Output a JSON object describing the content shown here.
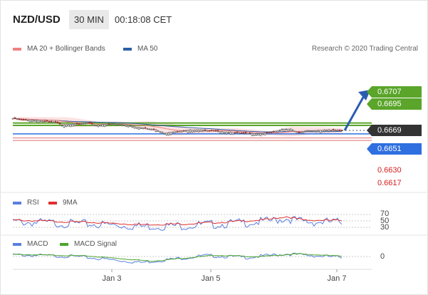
{
  "header": {
    "pair": "NZD/USD",
    "timeframe": "30 MIN",
    "time": "00:18:08 CET"
  },
  "legend_main": [
    {
      "label": "MA 20 + Bollinger Bands",
      "color": "#f08080"
    },
    {
      "label": "MA 50",
      "color": "#2e5fa8"
    }
  ],
  "credit": "Research © 2020 Trading Central",
  "price_labels": [
    {
      "text": "0.6707",
      "bg": "#5aa52a",
      "style": "box"
    },
    {
      "text": "0.6695",
      "bg": "#5aa52a",
      "style": "box"
    },
    {
      "text": "0.6669",
      "bg": "#333333",
      "style": "box"
    },
    {
      "text": "0.6651",
      "bg": "#2f6fe0",
      "style": "box"
    },
    {
      "text": "0.6630",
      "color": "#d22020",
      "style": "text"
    },
    {
      "text": "0.6617",
      "color": "#d22020",
      "style": "text"
    }
  ],
  "rsi": {
    "legend": [
      {
        "label": "RSI",
        "color": "#5b7fe0"
      },
      {
        "label": "9MA",
        "color": "#e03030"
      }
    ],
    "levels": [
      "70",
      "50",
      "30"
    ]
  },
  "macd": {
    "legend": [
      {
        "label": "MACD",
        "color": "#5b7fe0"
      },
      {
        "label": "MACD Signal",
        "color": "#4aa52a"
      }
    ],
    "levels": [
      "0"
    ]
  },
  "xaxis": [
    "Jan 3",
    "Jan 5",
    "Jan 7"
  ],
  "chart_data": {
    "type": "candlestick",
    "symbol": "NZD/USD",
    "interval": "30 MIN",
    "levels": {
      "resistance": [
        0.6707,
        0.6695
      ],
      "last": 0.6669,
      "pivot": 0.6651,
      "support": [
        0.663,
        0.6617
      ]
    },
    "close_path": [
      [
        0,
        0.6731
      ],
      [
        4,
        0.6726
      ],
      [
        8,
        0.6722
      ],
      [
        12,
        0.672
      ],
      [
        16,
        0.6716
      ],
      [
        20,
        0.6712
      ],
      [
        23,
        0.6697
      ],
      [
        27,
        0.6701
      ],
      [
        31,
        0.6702
      ],
      [
        35,
        0.6708
      ],
      [
        39,
        0.6695
      ],
      [
        43,
        0.6701
      ],
      [
        47,
        0.6703
      ],
      [
        51,
        0.6699
      ],
      [
        55,
        0.6693
      ],
      [
        59,
        0.6684
      ],
      [
        63,
        0.6678
      ],
      [
        67,
        0.6672
      ],
      [
        71,
        0.6655
      ],
      [
        75,
        0.666
      ],
      [
        79,
        0.6666
      ],
      [
        83,
        0.6672
      ],
      [
        87,
        0.6671
      ],
      [
        91,
        0.6668
      ],
      [
        95,
        0.6666
      ],
      [
        99,
        0.6661
      ],
      [
        103,
        0.6658
      ],
      [
        107,
        0.6656
      ],
      [
        111,
        0.6654
      ],
      [
        115,
        0.6651
      ],
      [
        118,
        0.6655
      ],
      [
        122,
        0.6662
      ],
      [
        126,
        0.6675
      ],
      [
        130,
        0.6676
      ],
      [
        134,
        0.6655
      ],
      [
        138,
        0.6669
      ],
      [
        142,
        0.6668
      ],
      [
        146,
        0.6671
      ],
      [
        150,
        0.6672
      ],
      [
        154,
        0.6669
      ]
    ],
    "rsi_path": [
      [
        0,
        54
      ],
      [
        20,
        50
      ],
      [
        40,
        46
      ],
      [
        60,
        40
      ],
      [
        80,
        42
      ],
      [
        100,
        48
      ],
      [
        120,
        56
      ],
      [
        128,
        65
      ],
      [
        136,
        54
      ],
      [
        154,
        53
      ]
    ],
    "macd_path": [
      [
        0,
        0.0003
      ],
      [
        30,
        0.0001
      ],
      [
        60,
        -0.0006
      ],
      [
        90,
        0.0002
      ],
      [
        110,
        0
      ],
      [
        128,
        0.0004
      ],
      [
        154,
        0
      ]
    ],
    "xaxis_labels": [
      "Jan 3",
      "Jan 5",
      "Jan 7"
    ]
  }
}
